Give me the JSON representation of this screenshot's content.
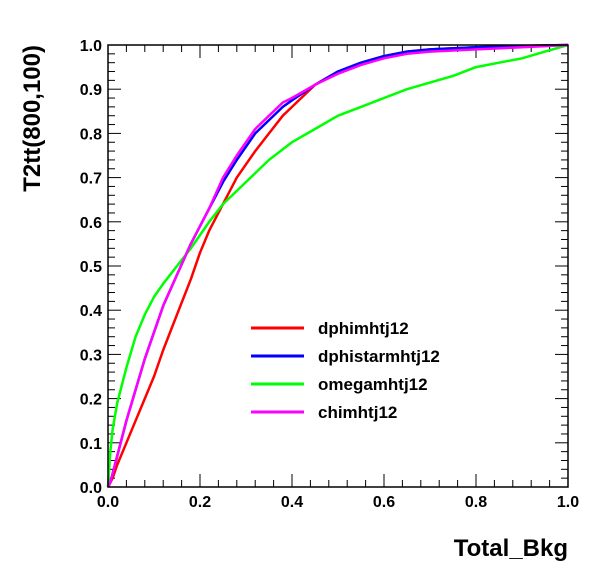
{
  "chart_data": {
    "type": "line",
    "title": "",
    "xlabel": "Total_Bkg",
    "ylabel": "T2tt(800,100)",
    "xlim": [
      0.0,
      1.0
    ],
    "ylim": [
      0.0,
      1.0
    ],
    "xticks": [
      0.0,
      0.2,
      0.4,
      0.6,
      0.8,
      1.0
    ],
    "xtick_labels": [
      "0.0",
      "0.2",
      "0.4",
      "0.6",
      "0.8",
      "1.0"
    ],
    "yticks": [
      0.0,
      0.1,
      0.2,
      0.3,
      0.4,
      0.5,
      0.6,
      0.7,
      0.8,
      0.9,
      1.0
    ],
    "ytick_labels": [
      "0.0",
      "0.1",
      "0.2",
      "0.3",
      "0.4",
      "0.5",
      "0.6",
      "0.7",
      "0.8",
      "0.9",
      "1.0"
    ],
    "grid": false,
    "legend_position": "center-right",
    "series": [
      {
        "name": "dphimhtj12",
        "color": "#ff0000",
        "x": [
          0.0,
          0.005,
          0.01,
          0.02,
          0.04,
          0.06,
          0.08,
          0.1,
          0.12,
          0.15,
          0.18,
          0.2,
          0.22,
          0.25,
          0.28,
          0.3,
          0.32,
          0.35,
          0.38,
          0.4,
          0.45,
          0.5,
          0.55,
          0.6,
          0.65,
          0.7,
          0.8,
          0.9,
          1.0
        ],
        "y": [
          0.0,
          0.01,
          0.02,
          0.05,
          0.1,
          0.15,
          0.2,
          0.25,
          0.31,
          0.39,
          0.47,
          0.53,
          0.58,
          0.64,
          0.7,
          0.73,
          0.76,
          0.8,
          0.84,
          0.86,
          0.91,
          0.94,
          0.96,
          0.975,
          0.985,
          0.99,
          0.995,
          0.998,
          1.0
        ]
      },
      {
        "name": "dphistarmhtj12",
        "color": "#0000ff",
        "x": [
          0.0,
          0.005,
          0.01,
          0.02,
          0.04,
          0.06,
          0.08,
          0.1,
          0.12,
          0.15,
          0.18,
          0.2,
          0.22,
          0.25,
          0.28,
          0.3,
          0.32,
          0.35,
          0.38,
          0.4,
          0.45,
          0.5,
          0.55,
          0.6,
          0.65,
          0.7,
          0.8,
          0.9,
          1.0
        ],
        "y": [
          0.0,
          0.01,
          0.03,
          0.07,
          0.15,
          0.22,
          0.29,
          0.35,
          0.41,
          0.48,
          0.55,
          0.59,
          0.63,
          0.69,
          0.74,
          0.77,
          0.8,
          0.83,
          0.86,
          0.875,
          0.91,
          0.94,
          0.96,
          0.975,
          0.985,
          0.99,
          0.995,
          0.998,
          1.0
        ]
      },
      {
        "name": "omegamhtj12",
        "color": "#00ff00",
        "x": [
          0.0,
          0.005,
          0.01,
          0.02,
          0.04,
          0.06,
          0.08,
          0.1,
          0.12,
          0.15,
          0.18,
          0.2,
          0.22,
          0.25,
          0.28,
          0.3,
          0.35,
          0.4,
          0.45,
          0.5,
          0.55,
          0.6,
          0.65,
          0.7,
          0.75,
          0.8,
          0.85,
          0.9,
          0.95,
          1.0
        ],
        "y": [
          0.0,
          0.08,
          0.13,
          0.19,
          0.27,
          0.34,
          0.39,
          0.43,
          0.46,
          0.5,
          0.54,
          0.57,
          0.6,
          0.64,
          0.67,
          0.69,
          0.74,
          0.78,
          0.81,
          0.84,
          0.86,
          0.88,
          0.9,
          0.915,
          0.93,
          0.95,
          0.96,
          0.97,
          0.985,
          1.0
        ]
      },
      {
        "name": "chimhtj12",
        "color": "#ff00ff",
        "x": [
          0.0,
          0.005,
          0.01,
          0.02,
          0.04,
          0.06,
          0.08,
          0.1,
          0.12,
          0.15,
          0.18,
          0.2,
          0.22,
          0.25,
          0.28,
          0.3,
          0.32,
          0.35,
          0.38,
          0.4,
          0.45,
          0.5,
          0.55,
          0.6,
          0.65,
          0.7,
          0.8,
          0.9,
          1.0
        ],
        "y": [
          0.0,
          0.01,
          0.03,
          0.07,
          0.15,
          0.22,
          0.29,
          0.35,
          0.41,
          0.48,
          0.55,
          0.59,
          0.63,
          0.7,
          0.75,
          0.78,
          0.81,
          0.84,
          0.87,
          0.88,
          0.91,
          0.935,
          0.955,
          0.97,
          0.98,
          0.985,
          0.99,
          0.995,
          1.0
        ]
      }
    ]
  }
}
